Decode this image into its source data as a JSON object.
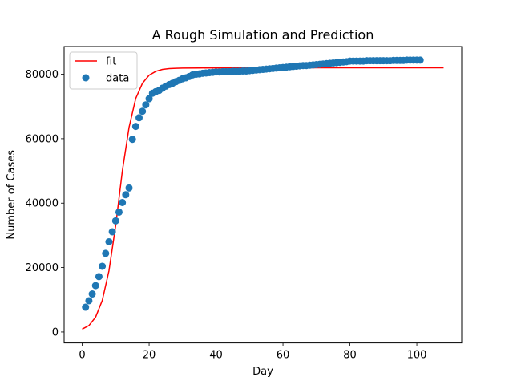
{
  "chart_data": {
    "type": "scatter",
    "title": "A Rough Simulation and Prediction",
    "xlabel": "Day",
    "ylabel": "Number of Cases",
    "xlim": [
      -5.4,
      113.4
    ],
    "ylim": [
      -3400,
      88600
    ],
    "xticks": [
      0,
      20,
      40,
      60,
      80,
      100
    ],
    "yticks": [
      0,
      20000,
      40000,
      60000,
      80000
    ],
    "grid": false,
    "legend_position": "upper-left",
    "series": [
      {
        "name": "fit",
        "kind": "line",
        "color": "#ff0000",
        "x": [
          0,
          2,
          4,
          6,
          8,
          10,
          12,
          14,
          16,
          18,
          20,
          22,
          24,
          26,
          28,
          30,
          35,
          40,
          50,
          60,
          70,
          80,
          90,
          100,
          108
        ],
        "y": [
          900,
          2000,
          4600,
          9800,
          19000,
          33000,
          50000,
          63500,
          72500,
          77200,
          79700,
          80900,
          81500,
          81750,
          81850,
          81900,
          81950,
          81980,
          82000,
          82000,
          82000,
          82000,
          82000,
          82000,
          82000
        ]
      },
      {
        "name": "data",
        "kind": "scatter",
        "color": "#1f77b4",
        "x": [
          1,
          2,
          3,
          4,
          5,
          6,
          7,
          8,
          9,
          10,
          11,
          12,
          13,
          14,
          15,
          16,
          17,
          18,
          19,
          20,
          21,
          22,
          23,
          24,
          25,
          26,
          27,
          28,
          29,
          30,
          31,
          32,
          33,
          34,
          35,
          36,
          37,
          38,
          39,
          40,
          41,
          42,
          43,
          44,
          45,
          46,
          47,
          48,
          49,
          50,
          51,
          52,
          53,
          54,
          55,
          56,
          57,
          58,
          59,
          60,
          61,
          62,
          63,
          64,
          65,
          66,
          67,
          68,
          69,
          70,
          71,
          72,
          73,
          74,
          75,
          76,
          77,
          78,
          79,
          80,
          81,
          82,
          83,
          84,
          85,
          86,
          87,
          88,
          89,
          90,
          91,
          92,
          93,
          94,
          95,
          96,
          97,
          98,
          99,
          100,
          101
        ],
        "y": [
          7700,
          9700,
          11800,
          14400,
          17200,
          20400,
          24400,
          28000,
          31100,
          34500,
          37200,
          40200,
          42600,
          44700,
          59800,
          63800,
          66500,
          68500,
          70500,
          72400,
          74100,
          74600,
          75000,
          75700,
          76300,
          76800,
          77200,
          77700,
          78100,
          78600,
          78900,
          79300,
          79800,
          80000,
          80100,
          80300,
          80400,
          80500,
          80600,
          80700,
          80700,
          80800,
          80800,
          80800,
          80900,
          80900,
          80900,
          81000,
          81000,
          81100,
          81200,
          81300,
          81400,
          81500,
          81600,
          81700,
          81800,
          81900,
          82000,
          82100,
          82200,
          82300,
          82400,
          82500,
          82600,
          82700,
          82700,
          82800,
          82900,
          83000,
          83100,
          83200,
          83300,
          83400,
          83500,
          83600,
          83700,
          83800,
          83900,
          84100,
          84100,
          84100,
          84100,
          84100,
          84200,
          84200,
          84200,
          84200,
          84200,
          84200,
          84200,
          84200,
          84300,
          84300,
          84300,
          84300,
          84400,
          84400,
          84400,
          84400,
          84400
        ]
      }
    ]
  }
}
